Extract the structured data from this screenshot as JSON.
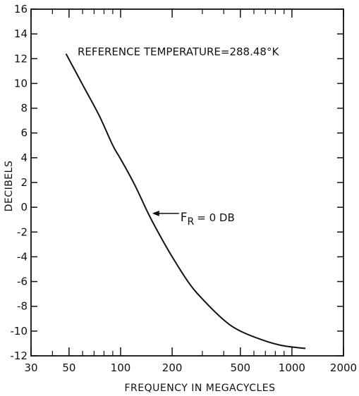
{
  "chart_data": {
    "type": "line",
    "xlabel": "FREQUENCY IN MEGACYCLES",
    "ylabel": "DECIBELS",
    "xscale": "log",
    "xlim": [
      30,
      2000
    ],
    "ylim": [
      -12,
      16
    ],
    "xticks": [
      30,
      50,
      100,
      200,
      500,
      1000,
      2000
    ],
    "yticks": [
      -12,
      -10,
      -8,
      -6,
      -4,
      -2,
      0,
      2,
      4,
      6,
      8,
      10,
      12,
      14,
      16
    ],
    "grid": false,
    "series": [
      {
        "x": [
          48,
          60,
          75,
          90,
          100,
          120,
          145,
          170,
          200,
          250,
          300,
          400,
          500,
          700,
          900,
          1200
        ],
        "y": [
          12.4,
          9.9,
          7.4,
          5.0,
          3.9,
          1.9,
          -0.5,
          -2.3,
          -4.0,
          -6.1,
          -7.4,
          -9.1,
          -10.0,
          -10.8,
          -11.2,
          -11.4
        ]
      }
    ],
    "annotations": [
      {
        "text": "REFERENCE TEMPERATURE=288.48°K"
      },
      {
        "text_main": "F",
        "text_sub": "R",
        "text_rest": "= 0 DB",
        "x": 150,
        "y": -0.5
      }
    ],
    "line_color": "#111111"
  }
}
